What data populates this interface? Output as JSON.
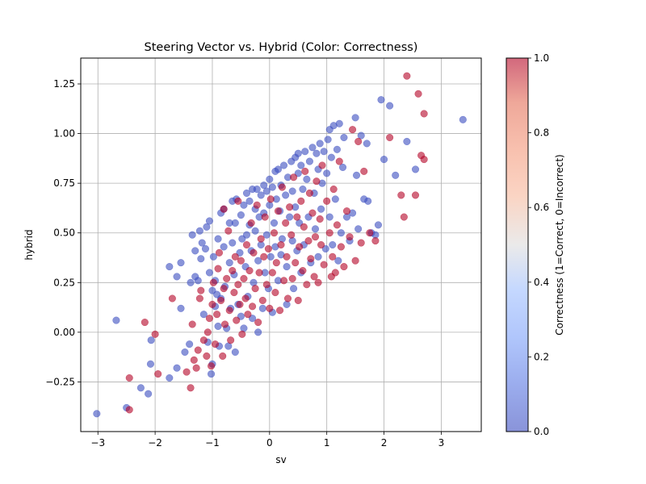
{
  "chart_data": {
    "type": "scatter",
    "title": "Steering Vector vs. Hybrid (Color: Correctness)",
    "xlabel": "sv",
    "ylabel": "hybrid",
    "xlim": [
      -3.3,
      3.7
    ],
    "ylim": [
      -0.5,
      1.38
    ],
    "xticks": [
      -3,
      -2,
      -1,
      0,
      1,
      2,
      3
    ],
    "xtick_labels": [
      "−3",
      "−2",
      "−1",
      "0",
      "1",
      "2",
      "3"
    ],
    "yticks": [
      -0.25,
      0.0,
      0.25,
      0.5,
      0.75,
      1.0,
      1.25
    ],
    "ytick_labels": [
      "−0.25",
      "0.00",
      "0.25",
      "0.50",
      "0.75",
      "1.00",
      "1.25"
    ],
    "grid": true,
    "colormap": "coolwarm",
    "point_alpha": 0.6,
    "colorbar": {
      "label": "Correctness (1=Correct, 0=Incorrect)",
      "range": [
        0,
        1
      ],
      "ticks": [
        0.0,
        0.2,
        0.4,
        0.6,
        0.8,
        1.0
      ],
      "tick_labels": [
        "0.0",
        "0.2",
        "0.4",
        "0.6",
        "0.8",
        "1.0"
      ]
    },
    "series": [
      {
        "value": 0,
        "color": "#3b4cc0",
        "points": [
          [
            -3.02,
            -0.41
          ],
          [
            -2.68,
            0.06
          ],
          [
            -2.5,
            -0.38
          ],
          [
            -2.25,
            -0.28
          ],
          [
            -2.12,
            -0.31
          ],
          [
            -2.08,
            -0.16
          ],
          [
            -2.07,
            -0.04
          ],
          [
            -1.75,
            -0.23
          ],
          [
            -1.62,
            -0.18
          ],
          [
            -1.55,
            0.12
          ],
          [
            -1.75,
            0.33
          ],
          [
            -1.62,
            0.28
          ],
          [
            -1.55,
            0.35
          ],
          [
            -1.48,
            -0.1
          ],
          [
            -1.4,
            -0.06
          ],
          [
            -1.38,
            0.25
          ],
          [
            -1.35,
            0.49
          ],
          [
            -1.3,
            0.28
          ],
          [
            -1.3,
            0.41
          ],
          [
            -1.25,
            0.26
          ],
          [
            -1.22,
            0.51
          ],
          [
            -1.2,
            0.37
          ],
          [
            -1.18,
            0.45
          ],
          [
            -1.15,
            0.09
          ],
          [
            -1.12,
            0.42
          ],
          [
            -1.1,
            0.53
          ],
          [
            -1.08,
            -0.05
          ],
          [
            -1.05,
            0.3
          ],
          [
            -1.05,
            0.56
          ],
          [
            -1.02,
            -0.21
          ],
          [
            -1.0,
            -0.16
          ],
          [
            -1.0,
            0.21
          ],
          [
            -0.98,
            0.38
          ],
          [
            -0.95,
            0.26
          ],
          [
            -0.95,
            0.13
          ],
          [
            -0.92,
            0.19
          ],
          [
            -0.9,
            0.03
          ],
          [
            -0.9,
            0.47
          ],
          [
            -0.88,
            -0.07
          ],
          [
            -0.85,
            0.6
          ],
          [
            -0.85,
            0.17
          ],
          [
            -0.8,
            0.43
          ],
          [
            -0.8,
            0.62
          ],
          [
            -0.78,
            0.23
          ],
          [
            -0.75,
            0.02
          ],
          [
            -0.72,
            -0.07
          ],
          [
            -0.7,
            0.55
          ],
          [
            -0.7,
            0.35
          ],
          [
            -0.68,
            0.12
          ],
          [
            -0.65,
            0.66
          ],
          [
            -0.65,
            0.45
          ],
          [
            -0.62,
            0.29
          ],
          [
            -0.6,
            0.55
          ],
          [
            -0.6,
            -0.1
          ],
          [
            -0.58,
            0.67
          ],
          [
            -0.55,
            0.14
          ],
          [
            -0.52,
            0.4
          ],
          [
            -0.5,
            0.59
          ],
          [
            -0.5,
            0.08
          ],
          [
            -0.48,
            0.47
          ],
          [
            -0.45,
            0.64
          ],
          [
            -0.45,
            0.02
          ],
          [
            -0.42,
            0.33
          ],
          [
            -0.4,
            0.7
          ],
          [
            -0.4,
            0.49
          ],
          [
            -0.38,
            0.18
          ],
          [
            -0.35,
            0.54
          ],
          [
            -0.35,
            0.66
          ],
          [
            -0.32,
            0.41
          ],
          [
            -0.3,
            0.72
          ],
          [
            -0.3,
            0.07
          ],
          [
            -0.28,
            0.25
          ],
          [
            -0.25,
            0.51
          ],
          [
            -0.25,
            0.62
          ],
          [
            -0.22,
            0.72
          ],
          [
            -0.2,
            0.36
          ],
          [
            -0.2,
            0.0
          ],
          [
            -0.18,
            0.58
          ],
          [
            -0.15,
            0.69
          ],
          [
            -0.15,
            0.44
          ],
          [
            -0.12,
            0.12
          ],
          [
            -0.1,
            0.74
          ],
          [
            -0.1,
            0.6
          ],
          [
            -0.08,
            0.3
          ],
          [
            -0.05,
            0.71
          ],
          [
            -0.05,
            0.49
          ],
          [
            -0.02,
            0.22
          ],
          [
            0.0,
            0.77
          ],
          [
            0.0,
            0.64
          ],
          [
            0.02,
            0.38
          ],
          [
            0.05,
            0.73
          ],
          [
            0.05,
            0.1
          ],
          [
            0.08,
            0.55
          ],
          [
            0.1,
            0.81
          ],
          [
            0.1,
            0.43
          ],
          [
            0.12,
            0.67
          ],
          [
            0.15,
            0.82
          ],
          [
            0.15,
            0.26
          ],
          [
            0.18,
            0.61
          ],
          [
            0.2,
            0.74
          ],
          [
            0.2,
            0.39
          ],
          [
            0.22,
            0.47
          ],
          [
            0.25,
            0.84
          ],
          [
            0.28,
            0.69
          ],
          [
            0.3,
            0.33
          ],
          [
            0.3,
            0.14
          ],
          [
            0.32,
            0.78
          ],
          [
            0.35,
            0.58
          ],
          [
            0.38,
            0.86
          ],
          [
            0.4,
            0.46
          ],
          [
            0.4,
            0.71
          ],
          [
            0.42,
            0.22
          ],
          [
            0.45,
            0.88
          ],
          [
            0.45,
            0.63
          ],
          [
            0.48,
            0.41
          ],
          [
            0.5,
            0.8
          ],
          [
            0.5,
            0.9
          ],
          [
            0.52,
            0.55
          ],
          [
            0.55,
            0.84
          ],
          [
            0.55,
            0.3
          ],
          [
            0.58,
            0.72
          ],
          [
            0.6,
            0.44
          ],
          [
            0.62,
            0.91
          ],
          [
            0.65,
            0.77
          ],
          [
            0.68,
            0.58
          ],
          [
            0.7,
            0.86
          ],
          [
            0.72,
            0.35
          ],
          [
            0.75,
            0.93
          ],
          [
            0.78,
            0.7
          ],
          [
            0.8,
            0.52
          ],
          [
            0.82,
            0.9
          ],
          [
            0.85,
            0.82
          ],
          [
            0.85,
            0.38
          ],
          [
            0.88,
            0.95
          ],
          [
            0.9,
            0.62
          ],
          [
            0.92,
            0.75
          ],
          [
            0.95,
            0.91
          ],
          [
            0.98,
            0.42
          ],
          [
            1.0,
            0.8
          ],
          [
            1.02,
            0.97
          ],
          [
            1.05,
            1.02
          ],
          [
            1.05,
            0.58
          ],
          [
            1.08,
            0.88
          ],
          [
            1.1,
            0.44
          ],
          [
            1.12,
            1.04
          ],
          [
            1.15,
            0.67
          ],
          [
            1.18,
            0.92
          ],
          [
            1.2,
            0.36
          ],
          [
            1.22,
            1.05
          ],
          [
            1.25,
            0.5
          ],
          [
            1.28,
            0.83
          ],
          [
            1.3,
            0.98
          ],
          [
            1.35,
            0.58
          ],
          [
            1.4,
            0.46
          ],
          [
            1.45,
            0.6
          ],
          [
            1.5,
            1.08
          ],
          [
            1.52,
            0.79
          ],
          [
            1.55,
            0.52
          ],
          [
            1.6,
            0.99
          ],
          [
            1.65,
            0.67
          ],
          [
            1.7,
            0.95
          ],
          [
            1.72,
            0.66
          ],
          [
            1.78,
            0.5
          ],
          [
            1.85,
            0.49
          ],
          [
            1.9,
            0.54
          ],
          [
            1.95,
            1.17
          ],
          [
            2.0,
            0.87
          ],
          [
            2.1,
            1.14
          ],
          [
            2.2,
            0.79
          ],
          [
            2.4,
            0.96
          ],
          [
            2.55,
            0.82
          ],
          [
            3.38,
            1.07
          ]
        ]
      },
      {
        "value": 1,
        "color": "#b40426",
        "points": [
          [
            -2.45,
            -0.23
          ],
          [
            -2.45,
            -0.39
          ],
          [
            -2.18,
            0.05
          ],
          [
            -2.0,
            -0.01
          ],
          [
            -1.95,
            -0.21
          ],
          [
            -1.7,
            0.17
          ],
          [
            -1.45,
            -0.2
          ],
          [
            -1.38,
            -0.28
          ],
          [
            -1.35,
            0.04
          ],
          [
            -1.32,
            -0.14
          ],
          [
            -1.28,
            -0.18
          ],
          [
            -1.25,
            -0.09
          ],
          [
            -1.22,
            0.17
          ],
          [
            -1.2,
            0.21
          ],
          [
            -1.15,
            -0.04
          ],
          [
            -1.1,
            -0.12
          ],
          [
            -1.08,
            0.0
          ],
          [
            -1.05,
            0.07
          ],
          [
            -1.02,
            -0.17
          ],
          [
            -1.0,
            0.14
          ],
          [
            -0.98,
            0.25
          ],
          [
            -0.95,
            -0.06
          ],
          [
            -0.92,
            0.09
          ],
          [
            -0.9,
            0.32
          ],
          [
            -0.88,
            0.4
          ],
          [
            -0.85,
            0.16
          ],
          [
            -0.82,
            -0.12
          ],
          [
            -0.8,
            0.22
          ],
          [
            -0.8,
            0.62
          ],
          [
            -0.78,
            0.04
          ],
          [
            -0.75,
            0.27
          ],
          [
            -0.72,
            0.51
          ],
          [
            -0.7,
            0.11
          ],
          [
            -0.68,
            -0.04
          ],
          [
            -0.65,
            0.31
          ],
          [
            -0.62,
            0.2
          ],
          [
            -0.6,
            0.38
          ],
          [
            -0.58,
            0.06
          ],
          [
            -0.55,
            0.24
          ],
          [
            -0.55,
            0.66
          ],
          [
            -0.52,
            0.14
          ],
          [
            -0.5,
            0.36
          ],
          [
            -0.48,
            -0.01
          ],
          [
            -0.45,
            0.27
          ],
          [
            -0.42,
            0.17
          ],
          [
            -0.4,
            0.44
          ],
          [
            -0.38,
            0.09
          ],
          [
            -0.35,
            0.31
          ],
          [
            -0.32,
            0.55
          ],
          [
            -0.3,
            0.13
          ],
          [
            -0.28,
            0.4
          ],
          [
            -0.25,
            0.22
          ],
          [
            -0.22,
            0.64
          ],
          [
            -0.2,
            0.05
          ],
          [
            -0.18,
            0.3
          ],
          [
            -0.15,
            0.47
          ],
          [
            -0.12,
            0.16
          ],
          [
            -0.1,
            0.38
          ],
          [
            -0.08,
            0.58
          ],
          [
            -0.05,
            0.24
          ],
          [
            -0.02,
            0.42
          ],
          [
            0.0,
            0.12
          ],
          [
            0.02,
            0.67
          ],
          [
            0.05,
            0.3
          ],
          [
            0.08,
            0.5
          ],
          [
            0.1,
            0.2
          ],
          [
            0.12,
            0.35
          ],
          [
            0.15,
            0.61
          ],
          [
            0.18,
            0.11
          ],
          [
            0.2,
            0.44
          ],
          [
            0.22,
            0.73
          ],
          [
            0.25,
            0.26
          ],
          [
            0.28,
            0.55
          ],
          [
            0.3,
            0.38
          ],
          [
            0.32,
            0.17
          ],
          [
            0.35,
            0.63
          ],
          [
            0.38,
            0.49
          ],
          [
            0.4,
            0.27
          ],
          [
            0.42,
            0.78
          ],
          [
            0.45,
            0.35
          ],
          [
            0.48,
            0.58
          ],
          [
            0.5,
            0.16
          ],
          [
            0.52,
            0.43
          ],
          [
            0.55,
            0.66
          ],
          [
            0.58,
            0.31
          ],
          [
            0.6,
            0.53
          ],
          [
            0.62,
            0.81
          ],
          [
            0.65,
            0.24
          ],
          [
            0.68,
            0.46
          ],
          [
            0.7,
            0.7
          ],
          [
            0.72,
            0.37
          ],
          [
            0.75,
            0.6
          ],
          [
            0.78,
            0.28
          ],
          [
            0.8,
            0.48
          ],
          [
            0.82,
            0.76
          ],
          [
            0.85,
            0.25
          ],
          [
            0.88,
            0.57
          ],
          [
            0.9,
            0.44
          ],
          [
            0.92,
            0.84
          ],
          [
            0.95,
            0.34
          ],
          [
            1.0,
            0.66
          ],
          [
            1.05,
            0.5
          ],
          [
            1.08,
            0.28
          ],
          [
            1.1,
            0.38
          ],
          [
            1.12,
            0.72
          ],
          [
            1.15,
            0.3
          ],
          [
            1.18,
            0.54
          ],
          [
            1.22,
            0.86
          ],
          [
            1.25,
            0.43
          ],
          [
            1.3,
            0.33
          ],
          [
            1.35,
            0.61
          ],
          [
            1.4,
            0.48
          ],
          [
            1.45,
            1.02
          ],
          [
            1.5,
            0.36
          ],
          [
            1.55,
            0.96
          ],
          [
            1.6,
            0.45
          ],
          [
            1.65,
            0.81
          ],
          [
            1.75,
            0.5
          ],
          [
            1.85,
            0.46
          ],
          [
            2.1,
            0.98
          ],
          [
            2.3,
            0.69
          ],
          [
            2.35,
            0.58
          ],
          [
            2.4,
            1.29
          ],
          [
            2.55,
            0.69
          ],
          [
            2.6,
            1.2
          ],
          [
            2.65,
            0.89
          ],
          [
            2.7,
            1.1
          ],
          [
            2.7,
            0.87
          ]
        ]
      }
    ]
  }
}
